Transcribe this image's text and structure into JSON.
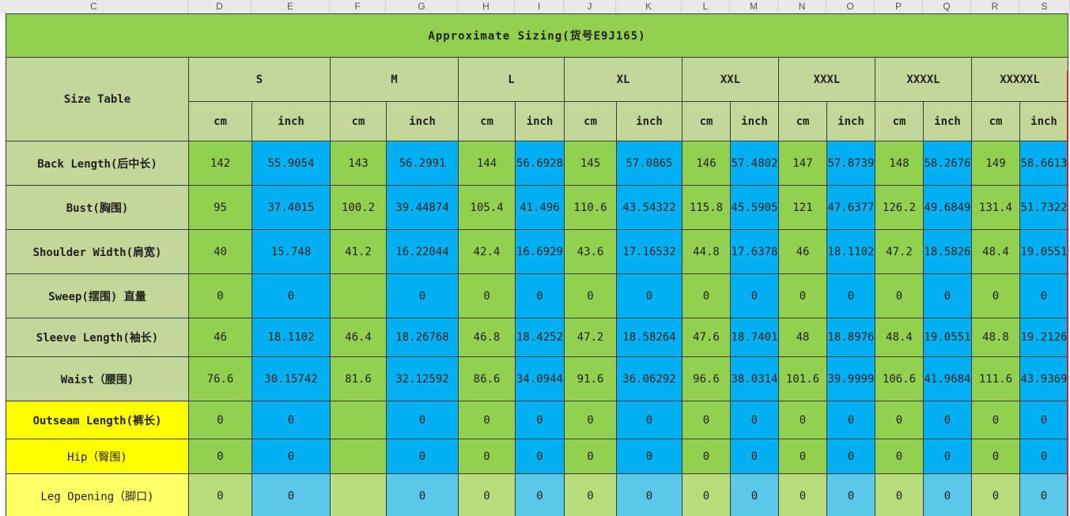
{
  "columns": [
    "C",
    "D",
    "E",
    "F",
    "G",
    "H",
    "I",
    "J",
    "K",
    "L",
    "M",
    "N",
    "O",
    "P",
    "Q",
    "R",
    "S"
  ],
  "title": "Approximate Sizing(货号E9J165)",
  "corner_label": "Size Table",
  "sizes": [
    "S",
    "M",
    "L",
    "XL",
    "XXL",
    "XXXL",
    "XXXXL",
    "XXXXXL"
  ],
  "unit_cm": "cm",
  "unit_inch": "inch",
  "rows": [
    {
      "label": "Back Length(后中长)",
      "values": [
        "142",
        "55.9054",
        "143",
        "56.2991",
        "144",
        "56.6928",
        "145",
        "57.0865",
        "146",
        "57.4802",
        "147",
        "57.8739",
        "148",
        "58.2676",
        "149",
        "58.6613"
      ]
    },
    {
      "label": "Bust(胸围)",
      "values": [
        "95",
        "37.4015",
        "100.2",
        "39.44874",
        "105.4",
        "41.496",
        "110.6",
        "43.54322",
        "115.8",
        "45.5905",
        "121",
        "47.6377",
        "126.2",
        "49.6849",
        "131.4",
        "51.7322"
      ]
    },
    {
      "label": "Shoulder Width(肩宽)",
      "values": [
        "40",
        "15.748",
        "41.2",
        "16.22044",
        "42.4",
        "16.6929",
        "43.6",
        "17.16532",
        "44.8",
        "17.6378",
        "46",
        "18.1102",
        "47.2",
        "18.5826",
        "48.4",
        "19.0551"
      ]
    },
    {
      "label": "Sweep(摆围) 直量",
      "values": [
        "0",
        "0",
        "",
        "0",
        "0",
        "0",
        "0",
        "0",
        "0",
        "0",
        "0",
        "0",
        "0",
        "0",
        "0",
        "0"
      ]
    },
    {
      "label": "Sleeve Length(袖长)",
      "values": [
        "46",
        "18.1102",
        "46.4",
        "18.26768",
        "46.8",
        "18.4252",
        "47.2",
        "18.58264",
        "47.6",
        "18.7401",
        "48",
        "18.8976",
        "48.4",
        "19.0551",
        "48.8",
        "19.2126"
      ]
    },
    {
      "label": "Waist（腰围)",
      "values": [
        "76.6",
        "30.15742",
        "81.6",
        "32.12592",
        "86.6",
        "34.0944",
        "91.6",
        "36.06292",
        "96.6",
        "38.0314",
        "101.6",
        "39.9999",
        "106.6",
        "41.9684",
        "111.6",
        "43.9369"
      ]
    },
    {
      "label": "Outseam Length(裤长)",
      "values": [
        "0",
        "0",
        "",
        "0",
        "0",
        "0",
        "0",
        "0",
        "0",
        "0",
        "0",
        "0",
        "0",
        "0",
        "0",
        "0"
      ]
    },
    {
      "label": "Hip（臀围)",
      "values": [
        "0",
        "0",
        "",
        "0",
        "0",
        "0",
        "0",
        "0",
        "0",
        "0",
        "0",
        "0",
        "0",
        "0",
        "0",
        "0"
      ]
    },
    {
      "label": "Leg Opening（脚口)",
      "values": [
        "0",
        "0",
        "",
        "0",
        "0",
        "0",
        "0",
        "0",
        "0",
        "0",
        "0",
        "0",
        "0",
        "0",
        "0",
        "0"
      ]
    }
  ]
}
